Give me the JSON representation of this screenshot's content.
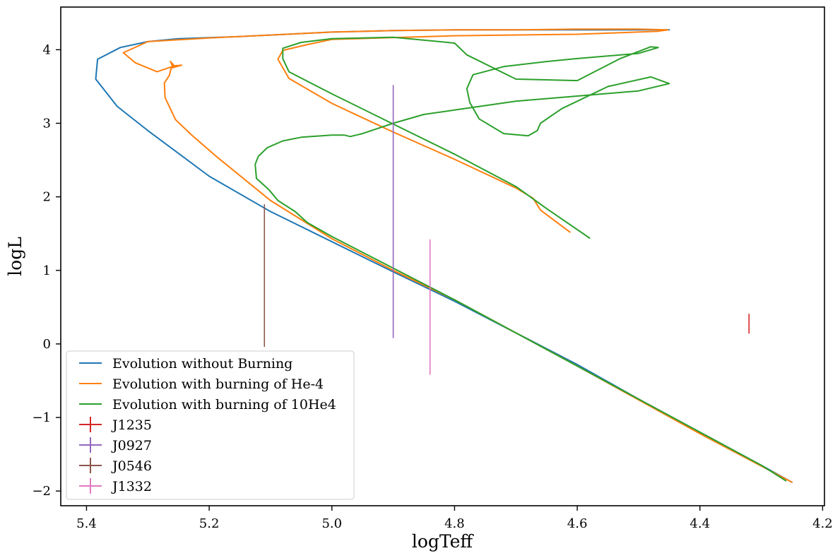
{
  "chart_data": {
    "type": "line",
    "title": "",
    "xlabel": "logTeff",
    "ylabel": "logL",
    "xlim": [
      5.442,
      4.197
    ],
    "ylim": [
      -2.2,
      4.58
    ],
    "x_inverted": true,
    "grid": false,
    "legend_position": "lower-left",
    "xticks": [
      5.4,
      5.2,
      5.0,
      4.8,
      4.6,
      4.4,
      4.2
    ],
    "xtick_labels": [
      "5.4",
      "5.2",
      "5.0",
      "4.8",
      "4.6",
      "4.4",
      "4.2"
    ],
    "yticks": [
      4,
      3,
      2,
      1,
      0,
      -1,
      -2
    ],
    "ytick_labels": [
      "4",
      "3",
      "2",
      "1",
      "0",
      "−1",
      "−2"
    ],
    "series": [
      {
        "name": "Evolution without Burning",
        "color": "#1f77b4",
        "x": [
          4.25,
          4.3,
          4.4,
          4.5,
          4.6,
          4.7,
          4.8,
          4.9,
          5.0,
          5.1,
          5.2,
          5.3,
          5.35,
          5.385,
          5.382,
          5.345,
          5.3,
          5.25,
          5.15,
          5.05,
          5.0,
          4.9,
          4.8,
          4.7,
          4.6,
          4.5,
          4.45
        ],
        "y": [
          -1.88,
          -1.65,
          -1.2,
          -0.75,
          -0.28,
          0.15,
          0.58,
          0.98,
          1.39,
          1.8,
          2.28,
          2.9,
          3.23,
          3.6,
          3.87,
          4.03,
          4.11,
          4.15,
          4.18,
          4.22,
          4.24,
          4.26,
          4.27,
          4.27,
          4.27,
          4.27,
          4.27
        ]
      },
      {
        "name": "Evolution with burning of He-4",
        "color": "#ff7f0e",
        "x": [
          4.25,
          4.4,
          4.6,
          4.8,
          4.9,
          5.0,
          5.1,
          5.19,
          5.23,
          5.255,
          5.272,
          5.273,
          5.265,
          5.262,
          5.245,
          5.26,
          5.263,
          5.257,
          5.285,
          5.32,
          5.34,
          5.3,
          5.2,
          5.1,
          5.0,
          4.9,
          4.8,
          4.7,
          4.6,
          4.5,
          4.452,
          4.47,
          4.6,
          4.8,
          5.0,
          5.04,
          5.08,
          5.088,
          5.07,
          5.0,
          4.9,
          4.8,
          4.7,
          4.672,
          4.66,
          4.612
        ],
        "y": [
          -1.88,
          -1.22,
          -0.3,
          0.6,
          1.0,
          1.43,
          1.95,
          2.56,
          2.85,
          3.05,
          3.35,
          3.55,
          3.65,
          3.75,
          3.79,
          3.78,
          3.84,
          3.78,
          3.7,
          3.82,
          3.96,
          4.11,
          4.16,
          4.2,
          4.24,
          4.26,
          4.27,
          4.27,
          4.28,
          4.28,
          4.27,
          4.25,
          4.21,
          4.19,
          4.14,
          4.07,
          3.99,
          3.87,
          3.61,
          3.27,
          2.88,
          2.51,
          2.12,
          1.98,
          1.82,
          1.52
        ]
      },
      {
        "name": "Evolution with burning of 10He4",
        "color": "#2ca02c",
        "x": [
          4.26,
          4.3,
          4.4,
          4.6,
          4.8,
          5.0,
          5.04,
          5.06,
          5.088,
          5.103,
          5.123,
          5.125,
          5.12,
          5.105,
          5.08,
          5.05,
          5.0,
          4.98,
          4.97,
          4.95,
          4.9,
          4.85,
          4.8,
          4.7,
          4.6,
          4.5,
          4.45,
          4.48,
          4.55,
          4.625,
          4.66,
          4.665,
          4.68,
          4.72,
          4.76,
          4.775,
          4.78,
          4.77,
          4.72,
          4.65,
          4.6,
          4.5,
          4.468,
          4.48,
          4.53,
          4.6,
          4.7,
          4.78,
          4.8,
          4.9,
          5.0,
          5.05,
          5.08,
          5.08,
          5.07,
          5.0,
          4.9,
          4.8,
          4.7,
          4.65,
          4.58
        ],
        "y": [
          -1.86,
          -1.65,
          -1.2,
          -0.3,
          0.6,
          1.46,
          1.65,
          1.8,
          1.95,
          2.1,
          2.25,
          2.44,
          2.55,
          2.67,
          2.76,
          2.81,
          2.84,
          2.84,
          2.82,
          2.86,
          3.0,
          3.12,
          3.18,
          3.3,
          3.37,
          3.44,
          3.54,
          3.63,
          3.5,
          3.2,
          3.0,
          2.9,
          2.83,
          2.86,
          3.06,
          3.28,
          3.47,
          3.66,
          3.77,
          3.84,
          3.88,
          3.95,
          4.03,
          4.04,
          3.88,
          3.58,
          3.6,
          3.93,
          4.09,
          4.17,
          4.15,
          4.1,
          4.02,
          3.88,
          3.7,
          3.4,
          2.99,
          2.58,
          2.14,
          1.84,
          1.44
        ]
      },
      {
        "name": "J1235",
        "color": "#d62728",
        "type": "errorbar",
        "x": 4.32,
        "y": 0.275,
        "yerr": 0.135
      },
      {
        "name": "J0927",
        "color": "#9467bd",
        "type": "errorbar",
        "x": 4.9,
        "y": 1.8,
        "yerr": 1.72
      },
      {
        "name": "J0546",
        "color": "#8c564b",
        "type": "errorbar",
        "x": 5.11,
        "y": 0.93,
        "yerr": 0.97
      },
      {
        "name": "J1332",
        "color": "#e377c2",
        "type": "errorbar",
        "x": 4.84,
        "y": 0.5,
        "yerr": 0.92
      }
    ]
  }
}
